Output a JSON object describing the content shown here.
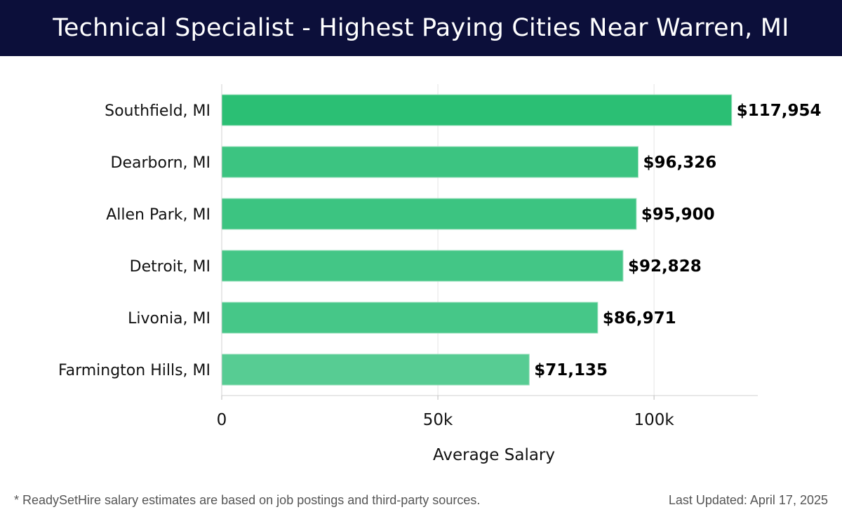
{
  "header": {
    "title": "Technical Specialist - Highest Paying Cities Near Warren, MI"
  },
  "chart_data": {
    "type": "bar",
    "orientation": "horizontal",
    "categories": [
      "Southfield, MI",
      "Dearborn, MI",
      "Allen Park, MI",
      "Detroit, MI",
      "Livonia, MI",
      "Farmington Hills, MI"
    ],
    "values": [
      117954,
      96326,
      95900,
      92828,
      86971,
      71135
    ],
    "value_labels": [
      "$117,954",
      "$96,326",
      "$95,900",
      "$92,828",
      "$86,971",
      "$71,135"
    ],
    "xlabel": "Average Salary",
    "ylabel": "",
    "xlim": [
      0,
      124000
    ],
    "xticks": [
      0,
      50000,
      100000
    ],
    "xtick_labels": [
      "0",
      "50k",
      "100k"
    ],
    "grid": "vertical",
    "bar_colors": [
      "#2bbf74",
      "#3cc481",
      "#3cc481",
      "#43c686",
      "#46c788",
      "#57cc93"
    ]
  },
  "footer": {
    "note": "* ReadySetHire salary estimates are based on job postings and third-party sources.",
    "updated": "Last Updated: April 17, 2025"
  }
}
